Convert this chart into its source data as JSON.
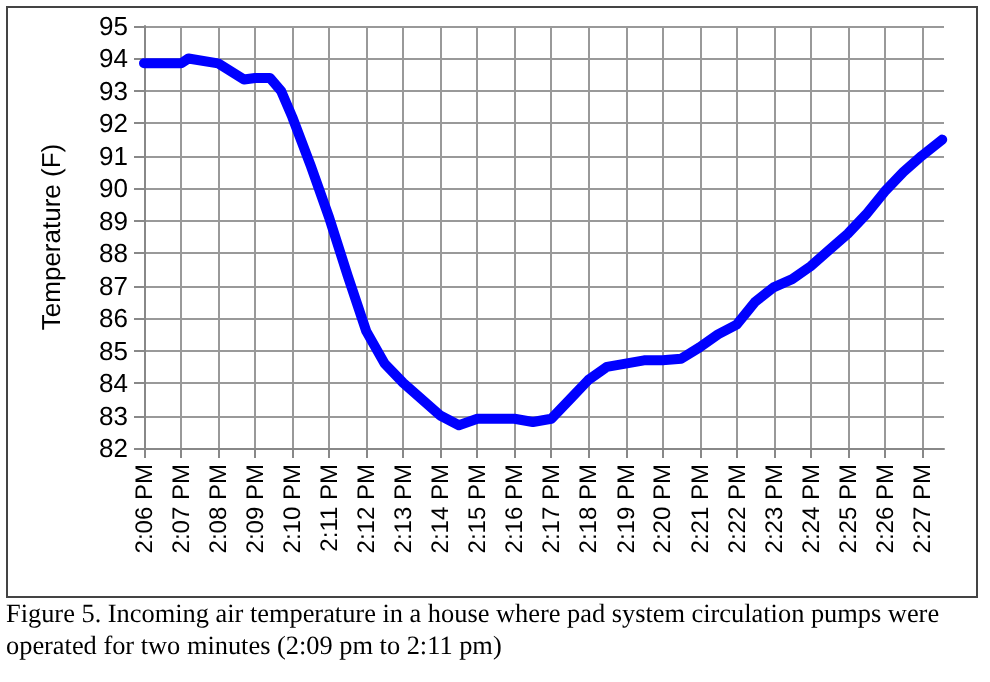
{
  "chart_data": {
    "type": "line",
    "ylabel": "Temperature (F)",
    "x": [
      14.1,
      14.1167,
      14.12,
      14.1333,
      14.145,
      14.15,
      14.1567,
      14.1617,
      14.1667,
      14.175,
      14.1833,
      14.1917,
      14.2,
      14.2083,
      14.2167,
      14.2333,
      14.2417,
      14.25,
      14.2617,
      14.2667,
      14.275,
      14.2833,
      14.2917,
      14.3,
      14.3083,
      14.3167,
      14.325,
      14.3333,
      14.3417,
      14.35,
      14.3583,
      14.3667,
      14.375,
      14.3833,
      14.3917,
      14.4,
      14.4083,
      14.4167,
      14.425,
      14.4333,
      14.4417,
      14.45,
      14.4592
    ],
    "series": [
      {
        "color": "#0000ff",
        "values": [
          93.85,
          93.85,
          94.0,
          93.85,
          93.35,
          93.4,
          93.4,
          93.0,
          92.2,
          90.7,
          89.1,
          87.3,
          85.6,
          84.6,
          84.0,
          83.0,
          82.7,
          82.9,
          82.9,
          82.9,
          82.8,
          82.9,
          83.5,
          84.1,
          84.5,
          84.6,
          84.7,
          84.7,
          84.75,
          85.1,
          85.5,
          85.8,
          86.5,
          86.95,
          87.2,
          87.6,
          88.1,
          88.6,
          89.2,
          89.9,
          90.5,
          91.0,
          91.5
        ]
      }
    ],
    "xlim": [
      14.1,
      14.46
    ],
    "xticks": [
      {
        "value": 14.1,
        "label": "2:06 PM"
      },
      {
        "value": 14.1167,
        "label": "2:07 PM"
      },
      {
        "value": 14.1333,
        "label": "2:08 PM"
      },
      {
        "value": 14.15,
        "label": "2:09 PM"
      },
      {
        "value": 14.1667,
        "label": "2:10 PM"
      },
      {
        "value": 14.1833,
        "label": "2:11 PM"
      },
      {
        "value": 14.2,
        "label": "2:12 PM"
      },
      {
        "value": 14.2167,
        "label": "2:13 PM"
      },
      {
        "value": 14.2333,
        "label": "2:14 PM"
      },
      {
        "value": 14.25,
        "label": "2:15 PM"
      },
      {
        "value": 14.2667,
        "label": "2:16 PM"
      },
      {
        "value": 14.2833,
        "label": "2:17 PM"
      },
      {
        "value": 14.3,
        "label": "2:18 PM"
      },
      {
        "value": 14.3167,
        "label": "2:19 PM"
      },
      {
        "value": 14.3333,
        "label": "2:20 PM"
      },
      {
        "value": 14.35,
        "label": "2:21 PM"
      },
      {
        "value": 14.3667,
        "label": "2:22 PM"
      },
      {
        "value": 14.3833,
        "label": "2:23 PM"
      },
      {
        "value": 14.4,
        "label": "2:24 PM"
      },
      {
        "value": 14.4167,
        "label": "2:25 PM"
      },
      {
        "value": 14.4333,
        "label": "2:26 PM"
      },
      {
        "value": 14.45,
        "label": "2:27 PM"
      }
    ],
    "ylim": [
      82,
      95
    ],
    "yticks": [
      82,
      83,
      84,
      85,
      86,
      87,
      88,
      89,
      90,
      91,
      92,
      93,
      94,
      95
    ],
    "grid": true,
    "marker": "none",
    "line_style": "solid",
    "annotations": [
      "Figure 5.  Incoming air temperature in a house where pad system circulation pumps were operated for two minutes (2:09 pm to 2:11 pm)"
    ]
  }
}
